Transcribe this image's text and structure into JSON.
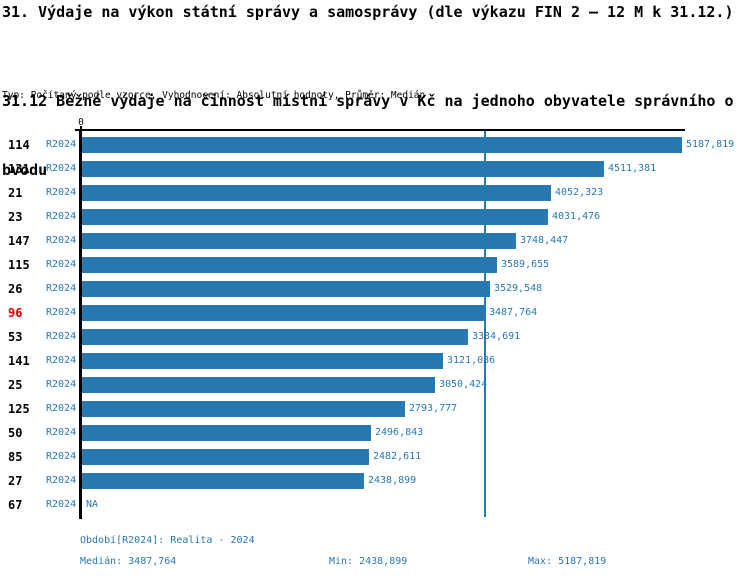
{
  "header": {
    "title": "31. Výdaje na výkon státní správy a samosprávy (dle výkazu FIN 2 – 12 M k 31.12.)",
    "subtitle_line1": "31.12 Běžné výdaje na činnost místní správy v Kč na jednoho obyvatele správního o",
    "subtitle_line2": "bvodu",
    "meta": "Typ: Počítaný podle vzorce, Vyhodnocení: Absolutní hodnoty, Průměr: Medián"
  },
  "chart_data": {
    "type": "bar",
    "orientation": "horizontal",
    "title": "31.12 Běžné výdaje na činnost místní správy v Kč na jednoho obyvatele správního obvodu",
    "value_axis": {
      "zero_label": "0",
      "min": 0,
      "max": 5187.819
    },
    "grid": false,
    "bar_color": "#2878b4",
    "highlight_color": "#e60000",
    "median_line": true,
    "median_value": 3487.764,
    "period_label": "R2024",
    "na_label": "NA",
    "rows": [
      {
        "id": "114",
        "period": "R2024",
        "value": 5187.819,
        "display": "5187,819",
        "highlight": false
      },
      {
        "id": "131",
        "period": "R2024",
        "value": 4511.381,
        "display": "4511,381",
        "highlight": false
      },
      {
        "id": "21",
        "period": "R2024",
        "value": 4052.323,
        "display": "4052,323",
        "highlight": false
      },
      {
        "id": "23",
        "period": "R2024",
        "value": 4031.476,
        "display": "4031,476",
        "highlight": false
      },
      {
        "id": "147",
        "period": "R2024",
        "value": 3748.447,
        "display": "3748,447",
        "highlight": false
      },
      {
        "id": "115",
        "period": "R2024",
        "value": 3589.655,
        "display": "3589,655",
        "highlight": false
      },
      {
        "id": "26",
        "period": "R2024",
        "value": 3529.548,
        "display": "3529,548",
        "highlight": false
      },
      {
        "id": "96",
        "period": "R2024",
        "value": 3487.764,
        "display": "3487,764",
        "highlight": true
      },
      {
        "id": "53",
        "period": "R2024",
        "value": 3334.691,
        "display": "3334,691",
        "highlight": false
      },
      {
        "id": "141",
        "period": "R2024",
        "value": 3121.036,
        "display": "3121,036",
        "highlight": false
      },
      {
        "id": "25",
        "period": "R2024",
        "value": 3050.424,
        "display": "3050,424",
        "highlight": false
      },
      {
        "id": "125",
        "period": "R2024",
        "value": 2793.777,
        "display": "2793,777",
        "highlight": false
      },
      {
        "id": "50",
        "period": "R2024",
        "value": 2496.843,
        "display": "2496,843",
        "highlight": false
      },
      {
        "id": "85",
        "period": "R2024",
        "value": 2482.611,
        "display": "2482,611",
        "highlight": false
      },
      {
        "id": "27",
        "period": "R2024",
        "value": 2438.899,
        "display": "2438,899",
        "highlight": false
      },
      {
        "id": "67",
        "period": "R2024",
        "value": null,
        "display": "NA",
        "highlight": false
      }
    ]
  },
  "footer": {
    "period": "Období[R2024]: Realita - 2024",
    "median": "Medián: 3487,764",
    "min": "Min: 2438,899",
    "max": "Max: 5187,819"
  }
}
